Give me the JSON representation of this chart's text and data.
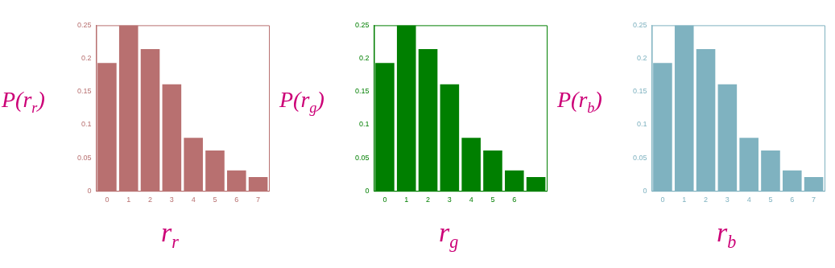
{
  "chart_data": [
    {
      "type": "bar",
      "ylabel": "P(r$_{r}$)",
      "xlabel": "r$_{r}$",
      "categories": [
        "0",
        "1",
        "2",
        "3",
        "4",
        "5",
        "6",
        "7"
      ],
      "values": [
        0.193,
        0.25,
        0.214,
        0.161,
        0.08,
        0.061,
        0.031,
        0.021
      ],
      "color": "#b87070",
      "ylim": [
        0,
        0.25
      ],
      "yticks": [
        0,
        0.05,
        0.1,
        0.15,
        0.2,
        0.25
      ],
      "grid": false
    },
    {
      "type": "bar",
      "ylabel": "P(r$_{g}$)",
      "xlabel": "r$_{g}$",
      "categories": [
        "0",
        "1",
        "2",
        "3",
        "4",
        "5",
        "6",
        null
      ],
      "values": [
        0.193,
        0.25,
        0.214,
        0.161,
        0.08,
        0.061,
        0.031,
        0.021
      ],
      "color": "#007f00",
      "ylim": [
        0,
        0.25
      ],
      "yticks": [
        0,
        0.05,
        0.1,
        0.15,
        0.2,
        0.25
      ],
      "grid": false
    },
    {
      "type": "bar",
      "ylabel": "P(r$_{b}$)",
      "xlabel": "r$_{b}$",
      "categories": [
        "0",
        "1",
        "2",
        "3",
        "4",
        "5",
        "6",
        "7"
      ],
      "values": [
        0.193,
        0.25,
        0.214,
        0.161,
        0.08,
        0.061,
        0.031,
        0.021
      ],
      "color": "#7fb2c0",
      "ylim": [
        0,
        0.25
      ],
      "yticks": [
        0,
        0.05,
        0.1,
        0.15,
        0.2,
        0.25
      ],
      "grid": false
    }
  ]
}
